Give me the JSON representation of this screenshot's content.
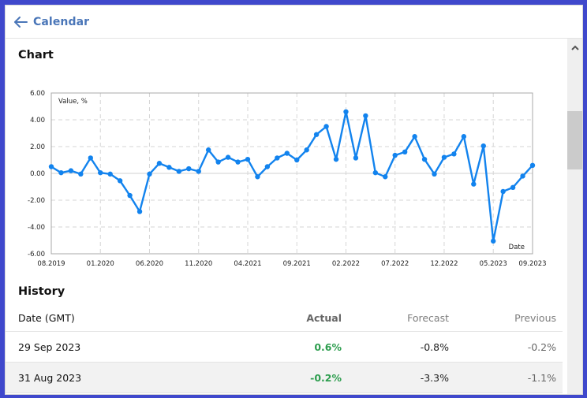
{
  "header": {
    "back_label": "Calendar",
    "back_icon": "arrow-left-icon",
    "accent_color": "#4a76b8"
  },
  "chart_section": {
    "title": "Chart"
  },
  "history_section": {
    "title": "History",
    "columns": [
      "Date (GMT)",
      "Actual",
      "Forecast",
      "Previous"
    ],
    "rows": [
      {
        "date": "29 Sep 2023",
        "actual": "0.6%",
        "forecast": "-0.8%",
        "previous": "-0.2%"
      },
      {
        "date": "31 Aug 2023",
        "actual": "-0.2%",
        "forecast": "-3.3%",
        "previous": "-1.1%"
      }
    ],
    "actual_color": "#2e9e4f"
  },
  "chart_data": {
    "type": "line",
    "title": "",
    "ylabel": "Value, %",
    "xlabel": "Date",
    "ylim": [
      -6,
      6
    ],
    "y_ticks": [
      "6.00",
      "4.00",
      "2.00",
      "0.00",
      "-2.00",
      "-4.00",
      "-6.00"
    ],
    "x_tick_labels": [
      "08.2019",
      "01.2020",
      "06.2020",
      "11.2020",
      "04.2021",
      "09.2021",
      "02.2022",
      "07.2022",
      "12.2022",
      "05.2023",
      "09.2023"
    ],
    "grid": true,
    "line_color": "#1283ee",
    "x": [
      "08.2019",
      "09.2019",
      "10.2019",
      "11.2019",
      "12.2019",
      "01.2020",
      "02.2020",
      "03.2020",
      "04.2020",
      "05.2020",
      "06.2020",
      "07.2020",
      "08.2020",
      "09.2020",
      "10.2020",
      "11.2020",
      "12.2020",
      "01.2021",
      "02.2021",
      "03.2021",
      "04.2021",
      "05.2021",
      "06.2021",
      "07.2021",
      "08.2021",
      "09.2021",
      "10.2021",
      "11.2021",
      "12.2021",
      "01.2022",
      "02.2022",
      "03.2022",
      "04.2022",
      "05.2022",
      "06.2022",
      "07.2022",
      "08.2022",
      "09.2022",
      "10.2022",
      "11.2022",
      "12.2022",
      "01.2023",
      "02.2023",
      "03.2023",
      "04.2023",
      "05.2023",
      "06.2023",
      "07.2023",
      "08.2023",
      "09.2023"
    ],
    "values": [
      0.5,
      0.05,
      0.2,
      -0.05,
      1.15,
      0.05,
      -0.05,
      -0.55,
      -1.65,
      -2.85,
      -0.05,
      0.75,
      0.45,
      0.15,
      0.35,
      0.15,
      1.75,
      0.85,
      1.2,
      0.85,
      1.05,
      -0.25,
      0.5,
      1.15,
      1.5,
      1.0,
      1.75,
      2.9,
      3.5,
      1.05,
      4.6,
      1.15,
      4.3,
      0.05,
      -0.25,
      1.35,
      1.6,
      2.75,
      1.05,
      -0.05,
      1.2,
      1.45,
      2.75,
      -0.8,
      2.05,
      -5.05,
      -1.35,
      -1.05,
      -0.2,
      0.6
    ]
  }
}
